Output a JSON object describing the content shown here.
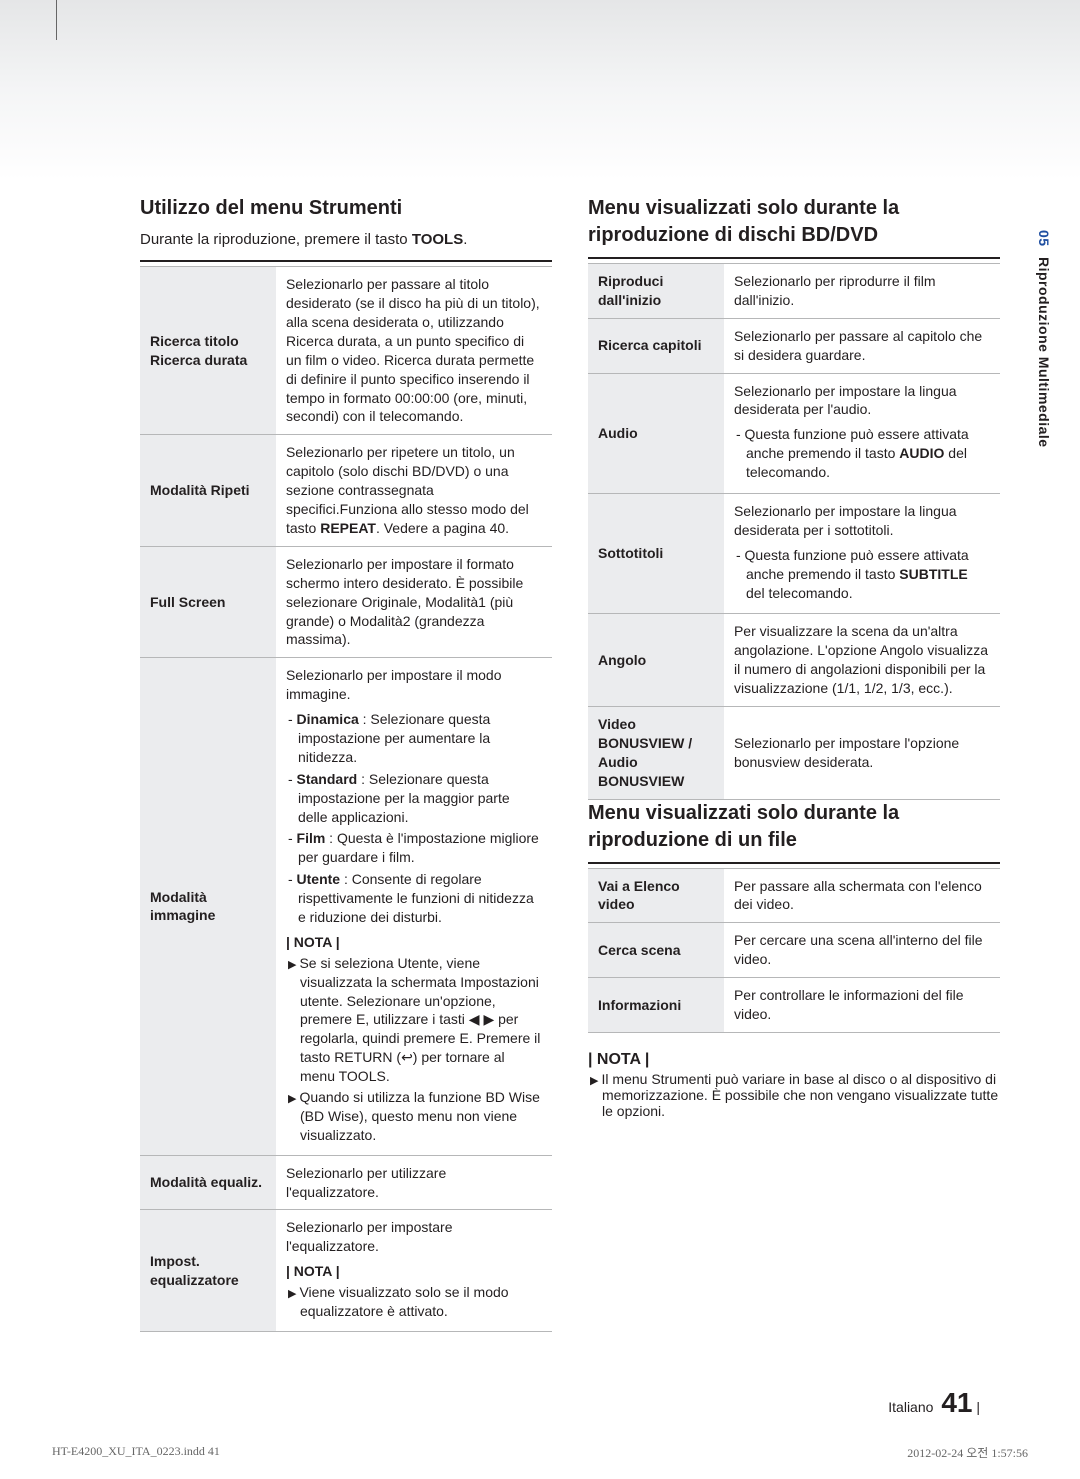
{
  "sideTab": {
    "chapter": "05",
    "title": "Riproduzione Multimediale"
  },
  "footer": {
    "lang": "Italiano",
    "page": "41"
  },
  "indd": {
    "left": "HT-E4200_XU_ITA_0223.indd   41",
    "right": "2012-02-24   오전 1:57:56"
  },
  "left": {
    "heading": "Utilizzo del menu Strumenti",
    "subline_pre": "Durante la riproduzione, premere il tasto ",
    "subline_bold": "TOOLS",
    "rows": [
      {
        "name": "Ricerca titolo\nRicerca durata",
        "desc": "Selezionarlo per passare al titolo desiderato (se il disco ha più di un titolo), alla scena desiderata o, utilizzando Ricerca durata, a un punto specifico di un film o video. Ricerca durata permette di definire il punto specifico inserendo il tempo in formato 00:00:00 (ore, minuti, secondi) con il telecomando."
      },
      {
        "name": "Modalità Ripeti",
        "desc_pre": "Selezionarlo per ripetere un titolo, un capitolo (solo dischi BD/DVD) o una sezione contrassegnata specifici.Funziona allo stesso modo del tasto ",
        "desc_bold": "REPEAT",
        "desc_post": ". Vedere a pagina 40."
      },
      {
        "name": "Full Screen",
        "desc": "Selezionarlo per impostare il formato schermo intero desiderato. È possibile selezionare Originale, Modalità1 (più grande) o Modalità2 (grandezza massima)."
      },
      {
        "name": "Modalità immagine",
        "lead": "Selezionarlo per impostare il modo immagine.",
        "items": [
          {
            "b": "Dinamica",
            "t": " : Selezionare questa impostazione per aumentare la nitidezza."
          },
          {
            "b": "Standard",
            "t": " : Selezionare questa impostazione per la maggior parte delle applicazioni."
          },
          {
            "b": "Film",
            "t": " : Questa è l'impostazione migliore per guardare i film."
          },
          {
            "b": "Utente",
            "t": " : Consente di regolare rispettivamente le funzioni di nitidezza e riduzione dei disturbi."
          }
        ],
        "nota": "| NOTA |",
        "notes": [
          "Se si seleziona Utente, viene visualizzata la schermata Impostazioni utente. Selezionare un'opzione, premere E, utilizzare i tasti ◀ ▶ per regolarla, quindi premere E. Premere il tasto RETURN (↩) per tornare al menu TOOLS.",
          "Quando si utilizza la funzione BD Wise (BD Wise), questo menu non viene visualizzato."
        ]
      },
      {
        "name": "Modalità equaliz.",
        "desc": "Selezionarlo per utilizzare l'equalizzatore."
      },
      {
        "name": "Impost. equalizzatore",
        "lead": "Selezionarlo per impostare l'equalizzatore.",
        "nota": "| NOTA |",
        "notes": [
          "Viene visualizzato solo se il modo equalizzatore è attivato."
        ]
      }
    ]
  },
  "right": {
    "h2a": "Menu visualizzati solo durante la riproduzione di dischi BD/DVD",
    "rowsA": [
      {
        "name": "Riproduci dall'inizio",
        "desc": "Selezionarlo per riprodurre il film dall'inizio."
      },
      {
        "name": "Ricerca capitoli",
        "desc": "Selezionarlo per passare al capitolo che si desidera guardare."
      },
      {
        "name": "Audio",
        "lead": "Selezionarlo per impostare la lingua desiderata per l'audio.",
        "dash_pre": "Questa funzione può essere attivata anche premendo il tasto ",
        "dash_bold": "AUDIO",
        "dash_post": " del telecomando."
      },
      {
        "name": "Sottotitoli",
        "lead": "Selezionarlo per impostare la lingua desiderata per i sottotitoli.",
        "dash_pre": "Questa funzione può essere attivata anche premendo il tasto ",
        "dash_bold": "SUBTITLE",
        "dash_post": " del telecomando."
      },
      {
        "name": "Angolo",
        "desc": "Per visualizzare la scena da un'altra angolazione. L'opzione Angolo visualizza il numero di angolazioni disponibili per la visualizzazione (1/1, 1/2, 1/3, ecc.)."
      },
      {
        "name": "Video BONUSVIEW / Audio BONUSVIEW",
        "desc": "Selezionarlo per impostare l'opzione bonusview desiderata."
      }
    ],
    "h2b": "Menu visualizzati solo durante la riproduzione di un file",
    "rowsB": [
      {
        "name": "Vai a Elenco video",
        "desc": "Per passare alla schermata con l'elenco dei video."
      },
      {
        "name": "Cerca scena",
        "desc": "Per cercare una scena all'interno del file video."
      },
      {
        "name": "Informazioni",
        "desc": "Per controllare le informazioni del file video."
      }
    ],
    "notaLabel": "| NOTA |",
    "notaText": "Il menu Strumenti può variare in base al disco o al dispositivo di memorizzazione. È possibile che non vengano visualizzate tutte le opzioni."
  }
}
